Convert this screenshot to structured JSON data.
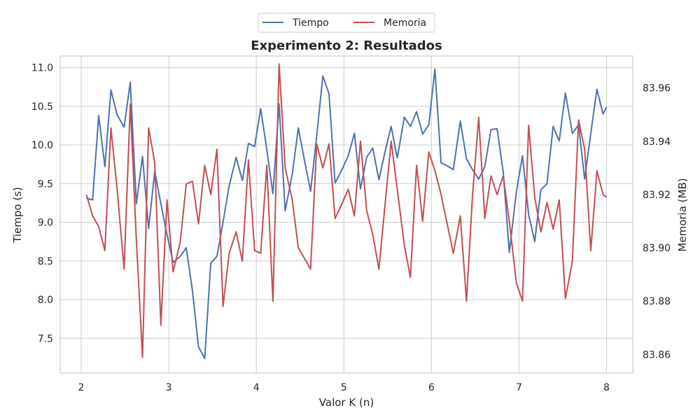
{
  "chart_data": {
    "type": "line",
    "title": "Experimento 2: Resultados",
    "xlabel": "Valor K (n)",
    "ylabel_left": "Tiempo (s)",
    "ylabel_right": "Memoria (MB)",
    "xlim": [
      1.76,
      8.3
    ],
    "ylim_left": [
      7.05,
      11.15
    ],
    "ylim_right": [
      83.853,
      83.972
    ],
    "x_ticks": [
      2,
      3,
      4,
      5,
      6,
      7,
      8
    ],
    "y_ticks_left": [
      7.5,
      8.0,
      8.5,
      9.0,
      9.5,
      10.0,
      10.5,
      11.0
    ],
    "y_ticks_right": [
      83.86,
      83.88,
      83.9,
      83.92,
      83.94,
      83.96
    ],
    "x_tick_labels": [
      "2",
      "3",
      "4",
      "5",
      "6",
      "7",
      "8"
    ],
    "y_tick_labels_left": [
      "7.5",
      "8.0",
      "8.5",
      "9.0",
      "9.5",
      "10.0",
      "10.5",
      "11.0"
    ],
    "y_tick_labels_right": [
      "83.86",
      "83.88",
      "83.90",
      "83.92",
      "83.94",
      "83.96"
    ],
    "grid": true,
    "legend_placement": "top-center",
    "series": [
      {
        "name": "Tiempo",
        "axis": "left",
        "color": "#4c72b0",
        "x": [
          2.06,
          2.13,
          2.2,
          2.27,
          2.34,
          2.41,
          2.49,
          2.56,
          2.63,
          2.7,
          2.77,
          2.84,
          2.91,
          2.98,
          3.05,
          3.13,
          3.2,
          3.27,
          3.34,
          3.41,
          3.48,
          3.55,
          3.62,
          3.69,
          3.77,
          3.84,
          3.91,
          3.98,
          4.05,
          4.12,
          4.19,
          4.26,
          4.33,
          4.41,
          4.48,
          4.55,
          4.62,
          4.69,
          4.76,
          4.83,
          4.9,
          4.97,
          5.05,
          5.12,
          5.19,
          5.26,
          5.33,
          5.4,
          5.47,
          5.54,
          5.61,
          5.69,
          5.76,
          5.83,
          5.9,
          5.97,
          6.04,
          6.11,
          6.18,
          6.25,
          6.33,
          6.4,
          6.47,
          6.54,
          6.61,
          6.68,
          6.75,
          6.82,
          6.89,
          6.97,
          7.04,
          7.11,
          7.18,
          7.25,
          7.32,
          7.39,
          7.46,
          7.53,
          7.61,
          7.68,
          7.75,
          7.82,
          7.89,
          7.96,
          8.0
        ],
        "values": [
          9.31,
          9.29,
          10.38,
          9.72,
          10.71,
          10.39,
          10.23,
          10.81,
          9.24,
          9.85,
          8.92,
          9.66,
          9.24,
          8.84,
          8.48,
          8.56,
          8.67,
          8.12,
          7.39,
          7.24,
          8.47,
          8.56,
          9.0,
          9.47,
          9.84,
          9.54,
          10.02,
          9.98,
          10.47,
          9.94,
          9.37,
          10.53,
          9.15,
          9.62,
          10.22,
          9.8,
          9.4,
          10.12,
          10.89,
          10.66,
          9.51,
          9.66,
          9.86,
          10.15,
          9.43,
          9.84,
          9.96,
          9.55,
          9.91,
          10.24,
          9.83,
          10.36,
          10.24,
          10.43,
          10.14,
          10.26,
          10.98,
          9.77,
          9.73,
          9.68,
          10.31,
          9.82,
          9.68,
          9.56,
          9.72,
          10.2,
          10.21,
          9.65,
          8.61,
          9.39,
          9.86,
          9.1,
          8.75,
          9.42,
          9.5,
          10.24,
          10.05,
          10.67,
          10.15,
          10.26,
          9.56,
          10.15,
          10.72,
          10.4,
          10.49
        ]
      },
      {
        "name": "Memoria",
        "axis": "right",
        "color": "#c44e52",
        "x": [
          2.06,
          2.13,
          2.2,
          2.27,
          2.34,
          2.41,
          2.49,
          2.56,
          2.63,
          2.7,
          2.77,
          2.84,
          2.91,
          2.98,
          3.05,
          3.13,
          3.2,
          3.27,
          3.34,
          3.41,
          3.48,
          3.55,
          3.62,
          3.69,
          3.77,
          3.84,
          3.91,
          3.98,
          4.05,
          4.12,
          4.19,
          4.26,
          4.33,
          4.41,
          4.48,
          4.55,
          4.62,
          4.69,
          4.76,
          4.83,
          4.9,
          4.97,
          5.05,
          5.12,
          5.19,
          5.26,
          5.33,
          5.4,
          5.47,
          5.54,
          5.61,
          5.69,
          5.76,
          5.83,
          5.9,
          5.97,
          6.04,
          6.11,
          6.18,
          6.25,
          6.33,
          6.4,
          6.47,
          6.54,
          6.61,
          6.68,
          6.75,
          6.82,
          6.89,
          6.97,
          7.04,
          7.11,
          7.18,
          7.25,
          7.32,
          7.39,
          7.46,
          7.53,
          7.61,
          7.68,
          7.75,
          7.82,
          7.89,
          7.96,
          8.0
        ],
        "values": [
          83.92,
          83.912,
          83.908,
          83.899,
          83.945,
          83.922,
          83.892,
          83.954,
          83.903,
          83.859,
          83.945,
          83.932,
          83.871,
          83.918,
          83.891,
          83.902,
          83.924,
          83.925,
          83.909,
          83.931,
          83.92,
          83.937,
          83.878,
          83.898,
          83.906,
          83.895,
          83.933,
          83.899,
          83.898,
          83.931,
          83.88,
          83.969,
          83.93,
          83.918,
          83.9,
          83.896,
          83.892,
          83.939,
          83.93,
          83.939,
          83.911,
          83.916,
          83.922,
          83.912,
          83.94,
          83.914,
          83.905,
          83.892,
          83.916,
          83.94,
          83.922,
          83.901,
          83.889,
          83.931,
          83.91,
          83.936,
          83.929,
          83.92,
          83.909,
          83.898,
          83.912,
          83.88,
          83.92,
          83.949,
          83.911,
          83.927,
          83.92,
          83.927,
          83.91,
          83.887,
          83.88,
          83.946,
          83.919,
          83.906,
          83.917,
          83.907,
          83.918,
          83.881,
          83.895,
          83.948,
          83.937,
          83.899,
          83.929,
          83.92,
          83.919
        ]
      }
    ]
  }
}
